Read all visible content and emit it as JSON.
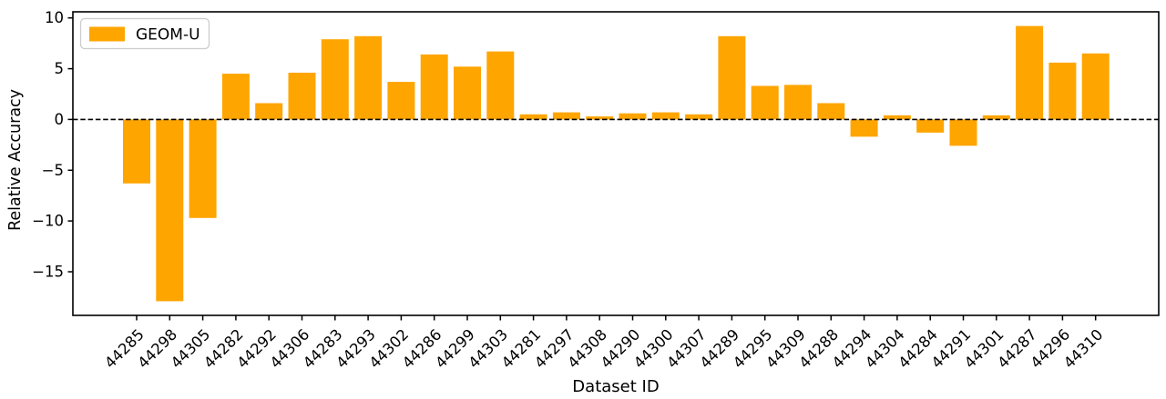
{
  "chart_data": {
    "type": "bar",
    "title": "",
    "xlabel": "Dataset ID",
    "ylabel": "Relative Accuracy",
    "legend": {
      "label": "GEOM-U",
      "position": "upper left",
      "swatch_color": "#FFA500"
    },
    "bar_color": "#FFA500",
    "categories": [
      "44285",
      "44298",
      "44305",
      "44282",
      "44292",
      "44306",
      "44283",
      "44293",
      "44302",
      "44286",
      "44299",
      "44303",
      "44281",
      "44297",
      "44308",
      "44290",
      "44300",
      "44307",
      "44289",
      "44295",
      "44309",
      "44288",
      "44294",
      "44304",
      "44284",
      "44291",
      "44301",
      "44287",
      "44296",
      "44310"
    ],
    "values": [
      -6.3,
      -17.9,
      -9.7,
      4.5,
      1.6,
      4.6,
      7.9,
      8.2,
      3.7,
      6.4,
      5.2,
      6.7,
      0.5,
      0.7,
      0.3,
      0.6,
      0.7,
      0.5,
      8.2,
      3.3,
      3.4,
      1.6,
      -1.7,
      0.4,
      -1.3,
      -2.6,
      0.4,
      9.2,
      5.6,
      6.5
    ],
    "yticks": [
      10,
      5,
      0,
      -5,
      -10,
      -15
    ],
    "ylim": [
      -19.3,
      10.6
    ],
    "grid": false,
    "x_tick_rotation_deg": 45,
    "zero_line": {
      "y": 0,
      "style": "dashed",
      "color": "#000000"
    }
  }
}
